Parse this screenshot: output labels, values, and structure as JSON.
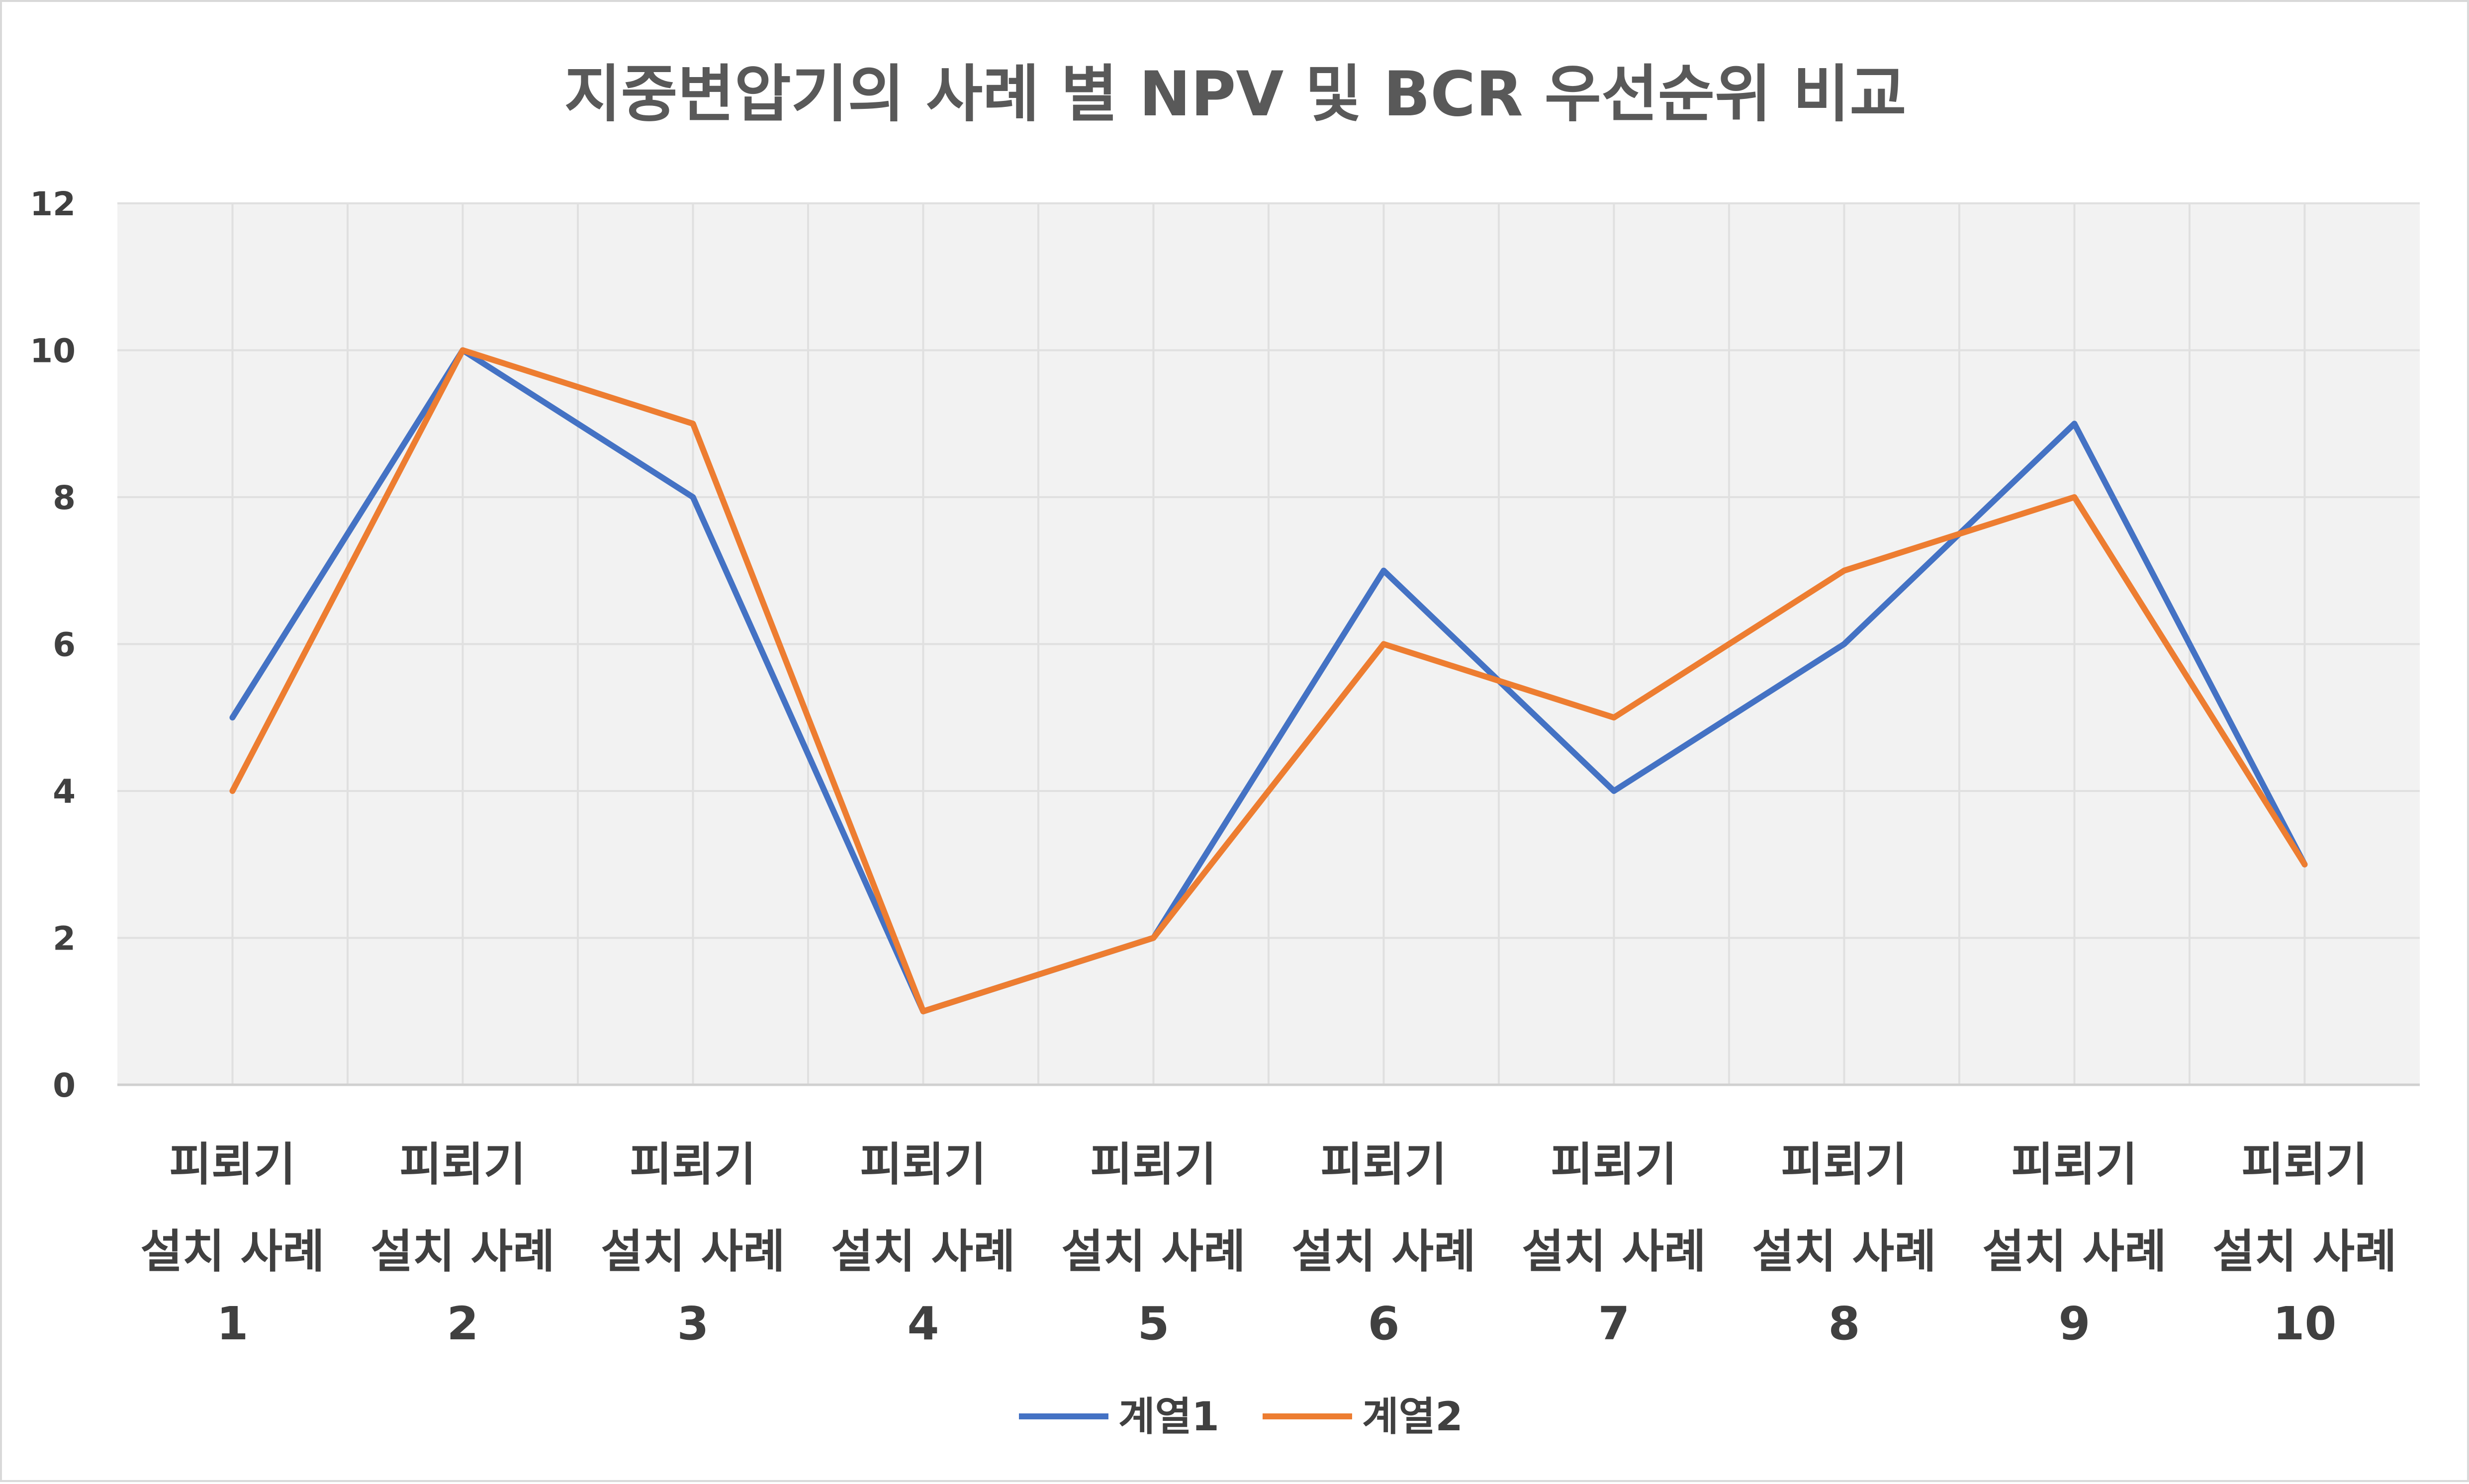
{
  "chart_data": {
    "type": "line",
    "title": "지중변압기의 사례 별 NPV 및 BCR 우선순위 비교",
    "xlabel": "",
    "ylabel": "",
    "categories": [
      [
        "피뢰기",
        "설치 사례",
        "1"
      ],
      [
        "피뢰기",
        "설치 사례",
        "2"
      ],
      [
        "피뢰기",
        "설치 사례",
        "3"
      ],
      [
        "피뢰기",
        "설치 사례",
        "4"
      ],
      [
        "피뢰기",
        "설치 사례",
        "5"
      ],
      [
        "피뢰기",
        "설치 사례",
        "6"
      ],
      [
        "피뢰기",
        "설치 사례",
        "7"
      ],
      [
        "피뢰기",
        "설치 사례",
        "8"
      ],
      [
        "피뢰기",
        "설치 사례",
        "9"
      ],
      [
        "피뢰기",
        "설치 사례",
        "10"
      ]
    ],
    "series": [
      {
        "name": "계열1",
        "color": "#4472c4",
        "values": [
          5,
          10,
          8,
          1,
          2,
          7,
          4,
          6,
          9,
          3
        ]
      },
      {
        "name": "계열2",
        "color": "#ed7d31",
        "values": [
          4,
          10,
          9,
          1,
          2,
          6,
          5,
          7,
          8,
          3
        ]
      }
    ],
    "ylim": [
      0,
      12
    ],
    "yticks": [
      "0",
      "2",
      "4",
      "6",
      "8",
      "10",
      "12"
    ],
    "grid": true,
    "legend_position": "bottom",
    "plot_background": "#f2f2f2",
    "grid_color": "#e0e0e0"
  }
}
